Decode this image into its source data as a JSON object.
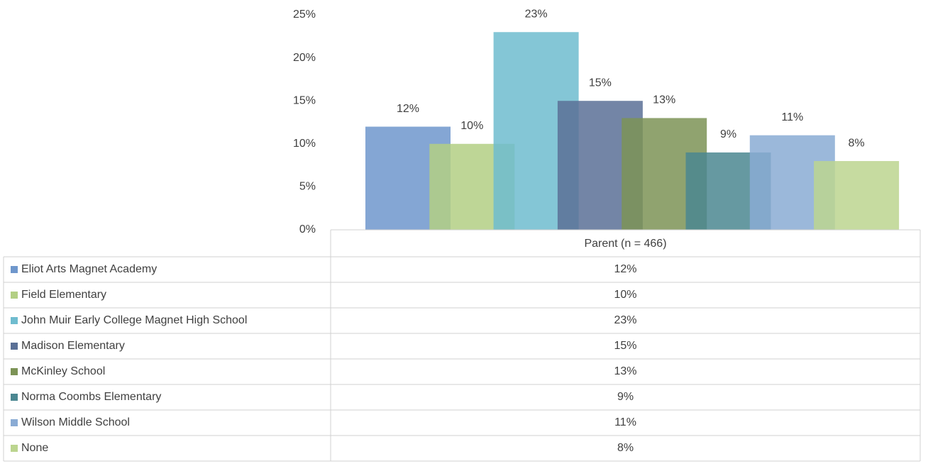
{
  "chart_data": {
    "type": "bar",
    "categories": [
      "Parent (n = 466)"
    ],
    "series": [
      {
        "name": "Eliot Arts Magnet Academy",
        "color": "#6f97cc",
        "values": [
          12
        ],
        "value_labels": [
          "12%"
        ]
      },
      {
        "name": "Field Elementary",
        "color": "#b3cf84",
        "values": [
          10
        ],
        "value_labels": [
          "10%"
        ]
      },
      {
        "name": "John Muir Early College Magnet High School",
        "color": "#6fbccf",
        "values": [
          23
        ],
        "value_labels": [
          "23%"
        ]
      },
      {
        "name": "Madison Elementary",
        "color": "#5a7096",
        "values": [
          15
        ],
        "value_labels": [
          "15%"
        ]
      },
      {
        "name": "McKinley School",
        "color": "#7c9356",
        "values": [
          13
        ],
        "value_labels": [
          "13%"
        ]
      },
      {
        "name": "Norma Coombs Elementary",
        "color": "#4b8791",
        "values": [
          9
        ],
        "value_labels": [
          "9%"
        ]
      },
      {
        "name": "Wilson Middle School",
        "color": "#8aabd4",
        "values": [
          11
        ],
        "value_labels": [
          "11%"
        ]
      },
      {
        "name": "None",
        "color": "#bcd58f",
        "values": [
          8
        ],
        "value_labels": [
          "8%"
        ]
      }
    ],
    "ylim": [
      0,
      25
    ],
    "yticks": [
      {
        "value": 0,
        "label": "0%"
      },
      {
        "value": 5,
        "label": "5%"
      },
      {
        "value": 10,
        "label": "10%"
      },
      {
        "value": 15,
        "label": "15%"
      },
      {
        "value": 20,
        "label": "20%"
      },
      {
        "value": 25,
        "label": "25%"
      }
    ],
    "grid": false
  }
}
